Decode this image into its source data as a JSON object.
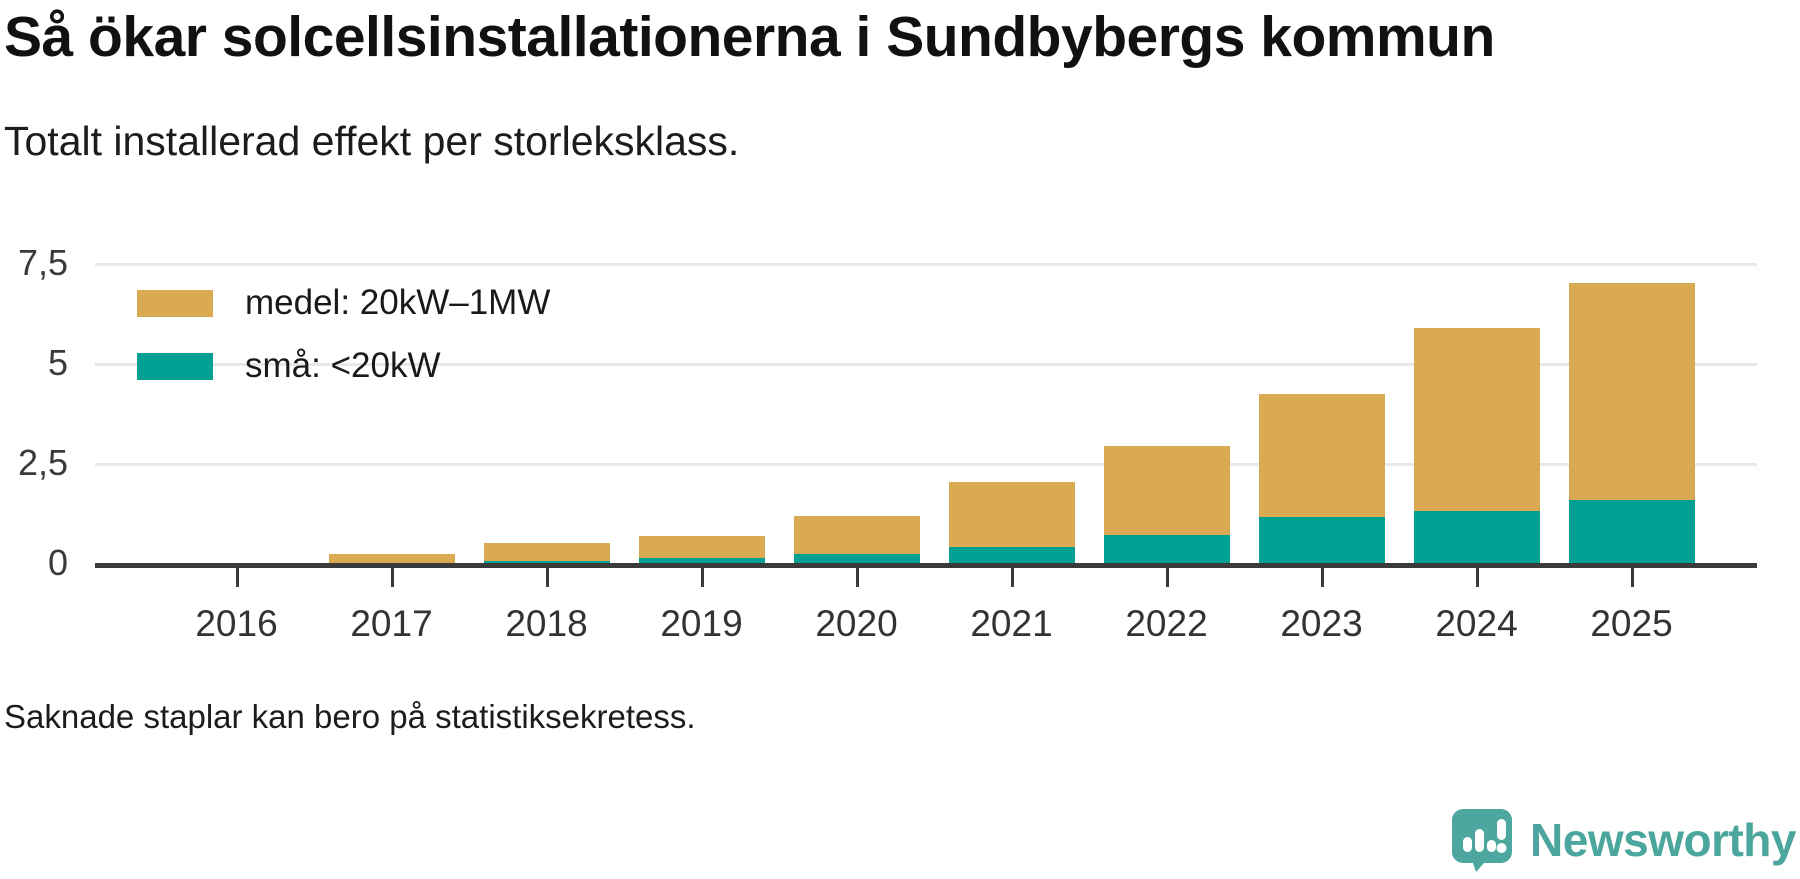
{
  "header": {
    "title": "Så ökar solcellsinstallationerna i Sundbybergs kommun",
    "subtitle": "Totalt installerad effekt per storleksklass."
  },
  "chart_data": {
    "type": "bar",
    "stacked": true,
    "title": "Så ökar solcellsinstallationerna i Sundbybergs kommun",
    "subtitle": "Totalt installerad effekt per storleksklass.",
    "categories": [
      "2016",
      "2017",
      "2018",
      "2019",
      "2020",
      "2021",
      "2022",
      "2023",
      "2024",
      "2025"
    ],
    "series": [
      {
        "name": "medel: 20kW–1MW",
        "color": "#d9aa52",
        "values": [
          0,
          0.23,
          0.45,
          0.56,
          0.95,
          1.62,
          2.23,
          3.08,
          4.58,
          5.42
        ]
      },
      {
        "name": "små: <20kW",
        "color": "#00a092",
        "values": [
          0,
          0,
          0.05,
          0.12,
          0.23,
          0.39,
          0.69,
          1.14,
          1.31,
          1.58
        ]
      }
    ],
    "totals": [
      0,
      0.23,
      0.5,
      0.68,
      1.18,
      2.01,
      2.92,
      4.22,
      5.89,
      7.0
    ],
    "xlabel": "",
    "ylabel": "",
    "ylim": [
      0,
      7.5
    ],
    "yticks": {
      "values": [
        0,
        2.5,
        5,
        7.5
      ],
      "labels": [
        "0",
        "2,5",
        "5",
        "7,5"
      ]
    },
    "grid": "horizontal",
    "legend_position": "top-left",
    "missing_bars": [
      "2016"
    ]
  },
  "footer": {
    "note": "Saknade staplar kan bero på statistiksekretess.",
    "brand": "Newsworthy"
  },
  "colors": {
    "medel": "#d9aa52",
    "sma": "#00a092",
    "axis": "#3a3a3a",
    "gridline": "#e8e8e8",
    "logo_teal": "#4da79e",
    "title_text": "#111111"
  }
}
